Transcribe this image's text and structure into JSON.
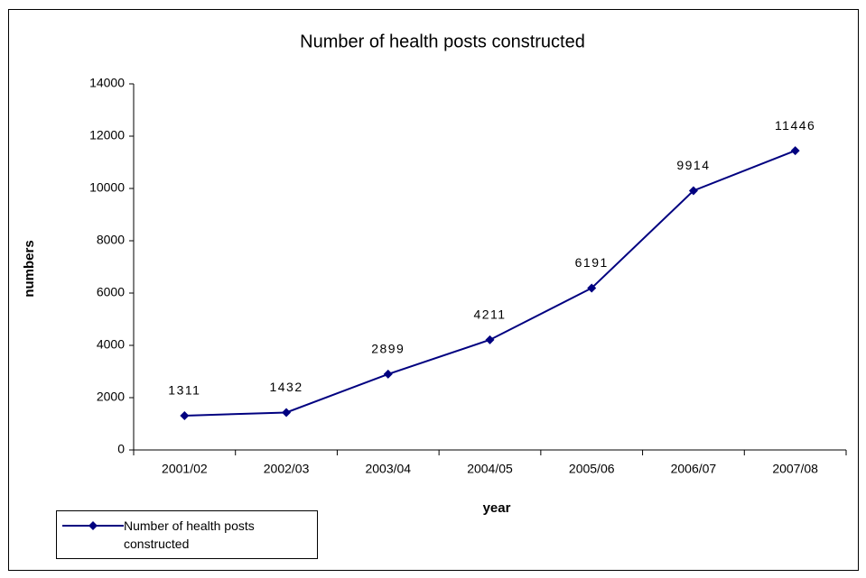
{
  "chart_data": {
    "type": "line",
    "title": "Number of health posts constructed",
    "x_label": "year",
    "y_label": "numbers",
    "categories": [
      "2001/02",
      "2002/03",
      "2003/04",
      "2004/05",
      "2005/06",
      "2006/07",
      "2007/08"
    ],
    "series": [
      {
        "name": "Number of health posts constructed",
        "color": "#000080",
        "values": [
          1311,
          1432,
          2899,
          4211,
          6191,
          9914,
          11446
        ]
      }
    ],
    "ylim": [
      0,
      14000
    ],
    "yticks": [
      0,
      2000,
      4000,
      6000,
      8000,
      10000,
      12000,
      14000
    ],
    "grid": false,
    "legend": "bottom-left"
  }
}
